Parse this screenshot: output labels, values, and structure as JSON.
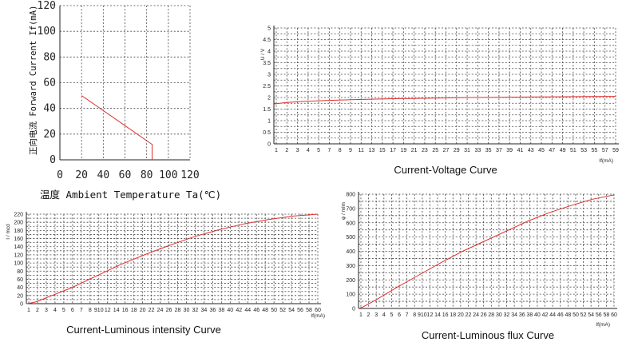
{
  "chart_data": [
    {
      "id": "derating",
      "type": "line",
      "title": "",
      "xlabel": "温度 Ambient Temperature Ta(℃)",
      "ylabel": "正向电流 Forward Current If(mA)",
      "xlim": [
        0,
        120
      ],
      "ylim": [
        0,
        120
      ],
      "x_ticks": [
        0,
        20,
        40,
        60,
        80,
        100,
        120
      ],
      "y_ticks": [
        0,
        20,
        40,
        60,
        80,
        100,
        120
      ],
      "grid": "dashed",
      "series": [
        {
          "x": [
            20,
            85,
            85
          ],
          "y": [
            50,
            12,
            0
          ]
        }
      ]
    },
    {
      "id": "cv",
      "type": "line",
      "title": "Current-Voltage Curve",
      "xlabel": "If(mA)",
      "ylabel": "U / V",
      "xlim": [
        1,
        60
      ],
      "ylim": [
        0,
        5
      ],
      "x_ticks": [
        "1",
        "2",
        "3",
        "4",
        "5",
        "7",
        "8",
        "9",
        "11",
        "13",
        "15",
        "17",
        "19",
        "21",
        "23",
        "25",
        "27",
        "29",
        "31",
        "33",
        "35",
        "37",
        "39",
        "41",
        "43",
        "45",
        "47",
        "49",
        "51",
        "53",
        "55",
        "57",
        "59"
      ],
      "y_ticks": [
        "0",
        "0.5",
        "1",
        "1.5",
        "2",
        "2.5",
        "3",
        "3.5",
        "4",
        "4.5",
        "5"
      ],
      "grid": "dashed",
      "series": [
        {
          "x": [
            1,
            3,
            6,
            10,
            15,
            20,
            25,
            30,
            35,
            40,
            45,
            50,
            55,
            60
          ],
          "y": [
            1.72,
            1.78,
            1.83,
            1.87,
            1.91,
            1.94,
            1.96,
            1.98,
            2.0,
            2.01,
            2.02,
            2.03,
            2.04,
            2.05
          ]
        }
      ]
    },
    {
      "id": "cli",
      "type": "line",
      "title": "Current-Luminous intensity Curve",
      "xlabel": "If(mA)",
      "ylabel": "I / mcd",
      "xlim": [
        1,
        60
      ],
      "ylim": [
        0,
        230
      ],
      "x_ticks": [
        "1",
        "2",
        "3",
        "4",
        "5",
        "6",
        "7",
        "8",
        "910",
        "12",
        "14",
        "16",
        "18",
        "20",
        "22",
        "24",
        "26",
        "28",
        "30",
        "32",
        "34",
        "36",
        "38",
        "40",
        "42",
        "44",
        "46",
        "48",
        "50",
        "52",
        "54",
        "56",
        "58",
        "60"
      ],
      "y_ticks": [
        "0",
        "20",
        "40",
        "60",
        "80",
        "100",
        "120",
        "140",
        "160",
        "180",
        "200",
        "220"
      ],
      "grid": "dashed",
      "series": [
        {
          "x": [
            1,
            2,
            3,
            4,
            6,
            8,
            10,
            15,
            20,
            25,
            30,
            35,
            40,
            45,
            50,
            55,
            60
          ],
          "y": [
            0,
            2,
            5,
            10,
            20,
            30,
            40,
            70,
            100,
            126,
            150,
            172,
            190,
            205,
            216,
            225,
            230
          ]
        }
      ]
    },
    {
      "id": "clf",
      "type": "line",
      "title": "Current-Luminous flux Curve",
      "xlabel": "If(mA)",
      "ylabel": "φ / mlm",
      "xlim": [
        1,
        60
      ],
      "ylim": [
        0,
        800
      ],
      "x_ticks": [
        "1",
        "2",
        "3",
        "4",
        "5",
        "6",
        "7",
        "8",
        "910",
        "12",
        "14",
        "16",
        "18",
        "20",
        "22",
        "24",
        "26",
        "28",
        "30",
        "32",
        "34",
        "36",
        "38",
        "40",
        "42",
        "44",
        "46",
        "48",
        "50",
        "52",
        "54",
        "56",
        "58",
        "60"
      ],
      "y_ticks": [
        "0",
        "100",
        "200",
        "300",
        "400",
        "500",
        "600",
        "700",
        "800"
      ],
      "grid": "dashed",
      "series": [
        {
          "x": [
            1,
            2,
            5,
            10,
            15,
            20,
            25,
            30,
            35,
            40,
            45,
            50,
            55,
            60
          ],
          "y": [
            0,
            10,
            60,
            150,
            235,
            320,
            400,
            470,
            540,
            610,
            670,
            720,
            765,
            795
          ]
        }
      ]
    }
  ]
}
